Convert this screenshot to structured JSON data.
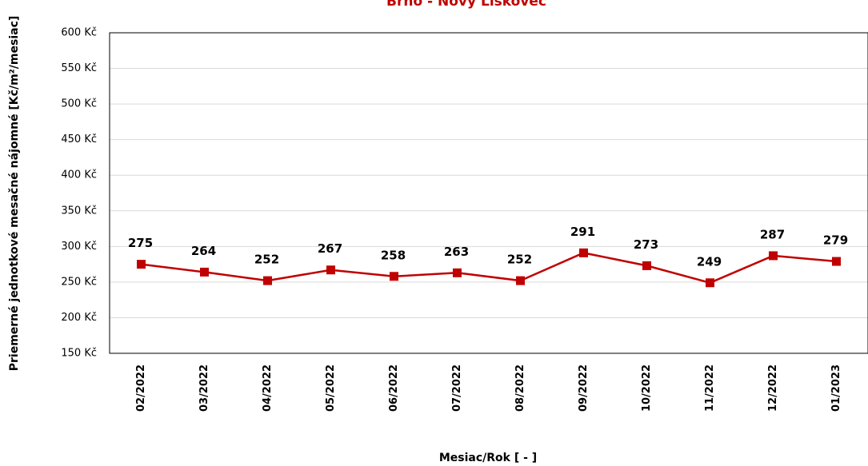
{
  "chart_data": {
    "type": "line",
    "title": "Brno -  Nový Lískovec",
    "x_label": "Mesiac/Rok [ - ]",
    "y_label": "Priemerné jednotkové mesačné nájomné [Kč/m²/mesiac]",
    "categories": [
      "02/2022",
      "03/2022",
      "04/2022",
      "05/2022",
      "06/2022",
      "07/2022",
      "08/2022",
      "09/2022",
      "10/2022",
      "11/2022",
      "12/2022",
      "01/2023"
    ],
    "series": [
      {
        "name": "Brno -  Nový Lískovec",
        "color": "#c00000",
        "values": [
          275,
          264,
          252,
          267,
          258,
          263,
          252,
          291,
          273,
          249,
          287,
          279
        ]
      }
    ],
    "ylim": [
      150,
      600
    ],
    "yticks": [
      {
        "value": 150,
        "label": "150 Kč"
      },
      {
        "value": 200,
        "label": "200 Kč"
      },
      {
        "value": 250,
        "label": "250 Kč"
      },
      {
        "value": 300,
        "label": "300 Kč"
      },
      {
        "value": 350,
        "label": "350 Kč"
      },
      {
        "value": 400,
        "label": "400 Kč"
      },
      {
        "value": 450,
        "label": "450 Kč"
      },
      {
        "value": 500,
        "label": "500 Kč"
      },
      {
        "value": 550,
        "label": "550 Kč"
      },
      {
        "value": 600,
        "label": "600 Kč"
      }
    ],
    "grid": true
  }
}
